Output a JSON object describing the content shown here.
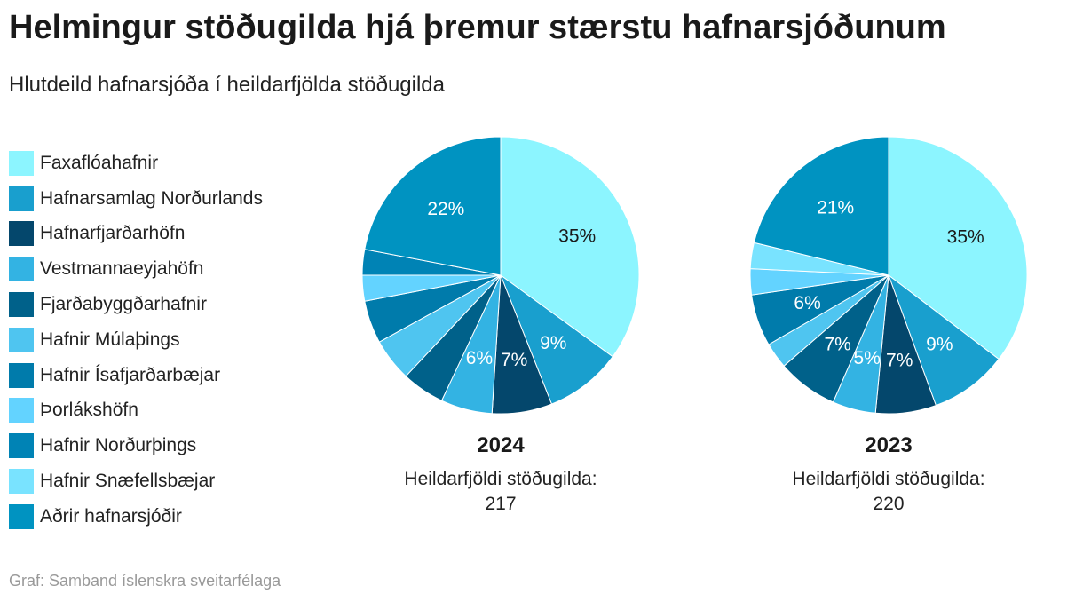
{
  "title": "Helmingur stöðugilda hjá þremur stærstu hafnarsjóðunum",
  "subtitle": "Hlutdeild hafnarsjóða í heildarfjölda stöðugilda",
  "footer": "Graf: Samband íslenskra sveitarfélaga",
  "legend": [
    {
      "label": "Faxaflóahafnir",
      "color": "#8cf5ff"
    },
    {
      "label": "Hafnarsamlag Norðurlands",
      "color": "#199fce"
    },
    {
      "label": "Hafnarfjarðarhöfn",
      "color": "#04476c"
    },
    {
      "label": "Vestmannaeyjahöfn",
      "color": "#33b3e3"
    },
    {
      "label": "Fjarðabyggðarhafnir",
      "color": "#00618a"
    },
    {
      "label": "Hafnir Múlaþings",
      "color": "#4fc5f0"
    },
    {
      "label": "Hafnir Ísafjarðarbæjar",
      "color": "#007bab"
    },
    {
      "label": "Þorlákshöfn",
      "color": "#63d3ff"
    },
    {
      "label": "Hafnir Norðurþings",
      "color": "#0083b5"
    },
    {
      "label": "Hafnir Snæfellsbæjar",
      "color": "#79e3ff"
    },
    {
      "label": "Aðrir hafnarsjóðir",
      "color": "#0093c1"
    }
  ],
  "chart_data": [
    {
      "type": "pie",
      "title": "2024",
      "total_label": "Heildarfjöldi stöðugilda:",
      "total_value": "217",
      "categories": [
        "Faxaflóahafnir",
        "Hafnarsamlag Norðurlands",
        "Hafnarfjarðarhöfn",
        "Vestmannaeyjahöfn",
        "Fjarðabyggðarhafnir",
        "Hafnir Múlaþings",
        "Hafnir Ísafjarðarbæjar",
        "Þorlákshöfn",
        "Hafnir Norðurþings",
        "Hafnir Snæfellsbæjar",
        "Aðrir hafnarsjóðir"
      ],
      "values": [
        35,
        9,
        7,
        6,
        5,
        5,
        5,
        3,
        3,
        0,
        22
      ],
      "labels": [
        "35%",
        "9%",
        "7%",
        "6%",
        "",
        "",
        "",
        "",
        "",
        "",
        "22%"
      ],
      "label_colors": [
        "#1a1a1a",
        "#ffffff",
        "#ffffff",
        "#ffffff",
        "",
        "",
        "",
        "",
        "",
        "",
        "#ffffff"
      ]
    },
    {
      "type": "pie",
      "title": "2023",
      "total_label": "Heildarfjöldi stöðugilda:",
      "total_value": "220",
      "categories": [
        "Faxaflóahafnir",
        "Hafnarsamlag Norðurlands",
        "Hafnarfjarðarhöfn",
        "Vestmannaeyjahöfn",
        "Fjarðabyggðarhafnir",
        "Hafnir Múlaþings",
        "Hafnir Ísafjarðarbæjar",
        "Þorlákshöfn",
        "Hafnir Norðurþings",
        "Hafnir Snæfellsbæjar",
        "Aðrir hafnarsjóðir"
      ],
      "values": [
        35,
        9,
        7,
        5,
        7,
        3,
        6,
        3,
        0,
        3,
        21
      ],
      "labels": [
        "35%",
        "9%",
        "7%",
        "5%",
        "7%",
        "",
        "6%",
        "",
        "",
        "",
        "21%"
      ],
      "label_colors": [
        "#1a1a1a",
        "#ffffff",
        "#ffffff",
        "#ffffff",
        "#ffffff",
        "",
        "#ffffff",
        "",
        "",
        "",
        "#ffffff"
      ]
    }
  ]
}
